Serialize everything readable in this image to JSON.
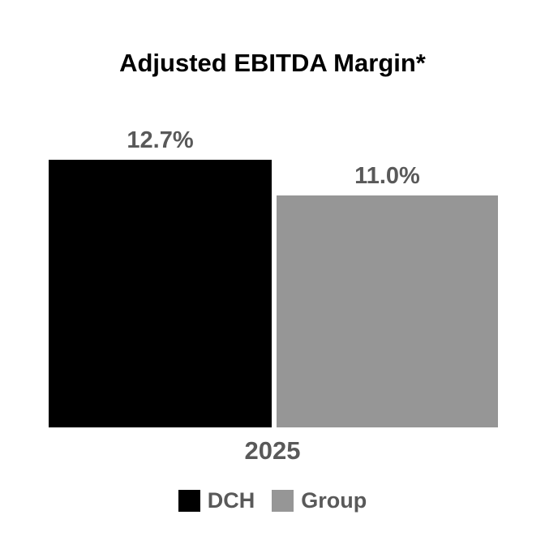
{
  "colors": {
    "background": "#ffffff",
    "title_text": "#000000",
    "label_text": "#595959",
    "bar_dch": "#000000",
    "bar_group": "#969696"
  },
  "chart_data": {
    "type": "bar",
    "title": "Adjusted EBITDA Margin*",
    "categories": [
      "2025"
    ],
    "series": [
      {
        "name": "DCH",
        "values": [
          12.7
        ],
        "label": "12.7%",
        "color": "#000000"
      },
      {
        "name": "Group",
        "values": [
          11.0
        ],
        "label": "11.0%",
        "color": "#969696"
      }
    ],
    "xlabel": "",
    "ylabel": "",
    "ylim": [
      0,
      14
    ],
    "grid": false,
    "axis_lines": false,
    "legend_position": "bottom"
  }
}
